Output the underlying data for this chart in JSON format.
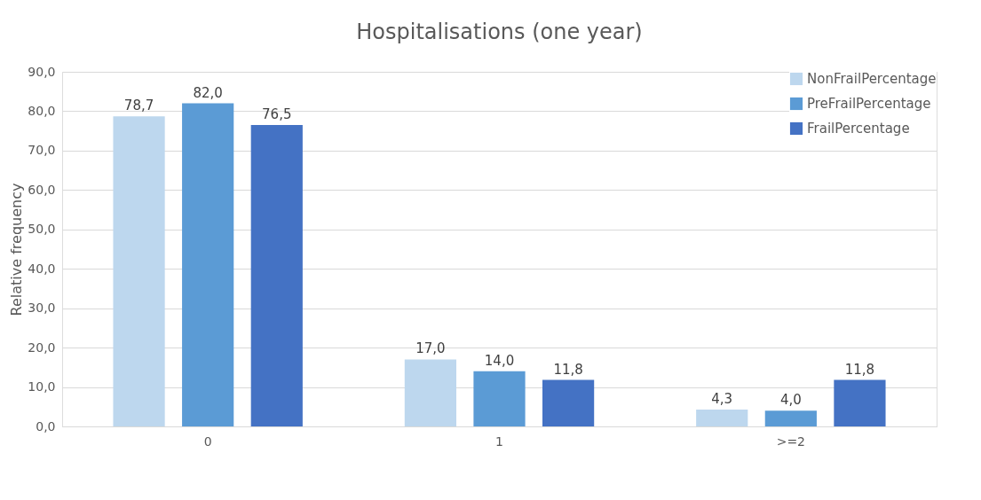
{
  "chart_data": {
    "type": "bar",
    "title": "Hospitalisations (one year)",
    "ylabel": "Relative frequency",
    "categories": [
      "0",
      "1",
      ">=2"
    ],
    "series": [
      {
        "name": "NonFrailPercentage",
        "color": "#bdd7ee",
        "values": [
          78.7,
          17.0,
          4.3
        ],
        "value_labels": [
          "78,7",
          "17,0",
          "4,3"
        ]
      },
      {
        "name": "PreFrailPercentage",
        "color": "#5b9bd5",
        "values": [
          82.0,
          14.0,
          4.0
        ],
        "value_labels": [
          "82,0",
          "14,0",
          "4,0"
        ]
      },
      {
        "name": "FrailPercentage",
        "color": "#4472c4",
        "values": [
          76.5,
          11.8,
          11.8
        ],
        "value_labels": [
          "76,5",
          "11,8",
          "11,8"
        ]
      }
    ],
    "ylim": [
      0,
      90
    ],
    "yticks": [
      {
        "value": 0,
        "label": "0,0"
      },
      {
        "value": 10,
        "label": "10,0"
      },
      {
        "value": 20,
        "label": "20,0"
      },
      {
        "value": 30,
        "label": "30,0"
      },
      {
        "value": 40,
        "label": "40,0"
      },
      {
        "value": 50,
        "label": "50,0"
      },
      {
        "value": 60,
        "label": "60,0"
      },
      {
        "value": 70,
        "label": "70,0"
      },
      {
        "value": 80,
        "label": "80,0"
      },
      {
        "value": 90,
        "label": "90,0"
      }
    ],
    "grid": "y",
    "legend": "top right"
  }
}
